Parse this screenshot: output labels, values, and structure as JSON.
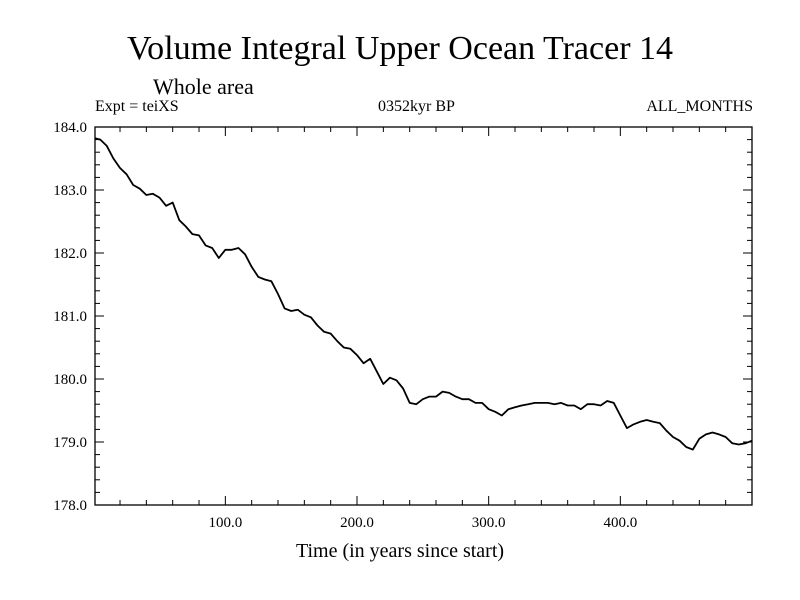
{
  "header": {
    "title": "Volume Integral Upper Ocean Tracer 14",
    "subtitle": "Whole area",
    "expt": "Expt = teiXS",
    "date": "0352kyr BP",
    "months": "ALL_MONTHS"
  },
  "chart_data": {
    "type": "line",
    "title": "Volume Integral Upper Ocean Tracer 14",
    "subtitle": "Whole area",
    "xlabel": "Time (in years since start)",
    "ylabel": "",
    "xlim": [
      1,
      500
    ],
    "ylim": [
      178.0,
      184.0
    ],
    "x_ticks": [
      100,
      200,
      300,
      400
    ],
    "x_tick_labels": [
      "100.0",
      "200.0",
      "300.0",
      "400.0"
    ],
    "y_ticks": [
      178,
      179,
      180,
      181,
      182,
      183,
      184
    ],
    "y_tick_labels": [
      "178.0",
      "179.0",
      "180.0",
      "181.0",
      "182.0",
      "183.0",
      "184.0"
    ],
    "grid": false,
    "series": [
      {
        "name": "Tracer 14",
        "x": [
          1,
          5,
          10,
          15,
          20,
          25,
          30,
          35,
          40,
          45,
          50,
          55,
          60,
          65,
          70,
          75,
          80,
          85,
          90,
          95,
          100,
          105,
          110,
          115,
          120,
          125,
          130,
          135,
          140,
          145,
          150,
          155,
          160,
          165,
          170,
          175,
          180,
          185,
          190,
          195,
          200,
          205,
          210,
          215,
          220,
          225,
          230,
          235,
          240,
          245,
          250,
          255,
          260,
          265,
          270,
          275,
          280,
          285,
          290,
          295,
          300,
          305,
          310,
          315,
          320,
          325,
          330,
          335,
          340,
          345,
          350,
          355,
          360,
          365,
          370,
          375,
          380,
          385,
          390,
          395,
          400,
          405,
          410,
          415,
          420,
          425,
          430,
          435,
          440,
          445,
          450,
          455,
          460,
          465,
          470,
          475,
          480,
          485,
          490,
          495,
          500
        ],
        "values": [
          183.82,
          183.8,
          183.7,
          183.5,
          183.35,
          183.25,
          183.08,
          183.02,
          182.92,
          182.94,
          182.88,
          182.75,
          182.8,
          182.52,
          182.42,
          182.3,
          182.28,
          182.12,
          182.08,
          181.92,
          182.05,
          182.05,
          182.08,
          181.98,
          181.78,
          181.62,
          181.58,
          181.55,
          181.35,
          181.12,
          181.08,
          181.1,
          181.02,
          180.98,
          180.85,
          180.75,
          180.72,
          180.6,
          180.5,
          180.48,
          180.38,
          180.25,
          180.32,
          180.12,
          179.92,
          180.02,
          179.98,
          179.85,
          179.62,
          179.6,
          179.68,
          179.72,
          179.72,
          179.8,
          179.78,
          179.72,
          179.68,
          179.68,
          179.62,
          179.62,
          179.52,
          179.48,
          179.42,
          179.52,
          179.55,
          179.58,
          179.6,
          179.62,
          179.62,
          179.62,
          179.6,
          179.62,
          179.58,
          179.58,
          179.52,
          179.6,
          179.6,
          179.58,
          179.65,
          179.62,
          179.42,
          179.22,
          179.28,
          179.32,
          179.35,
          179.32,
          179.3,
          179.18,
          179.08,
          179.02,
          178.92,
          178.88,
          179.05,
          179.12,
          179.15,
          179.12,
          179.08,
          178.98,
          178.96,
          178.98,
          179.02
        ]
      }
    ]
  }
}
